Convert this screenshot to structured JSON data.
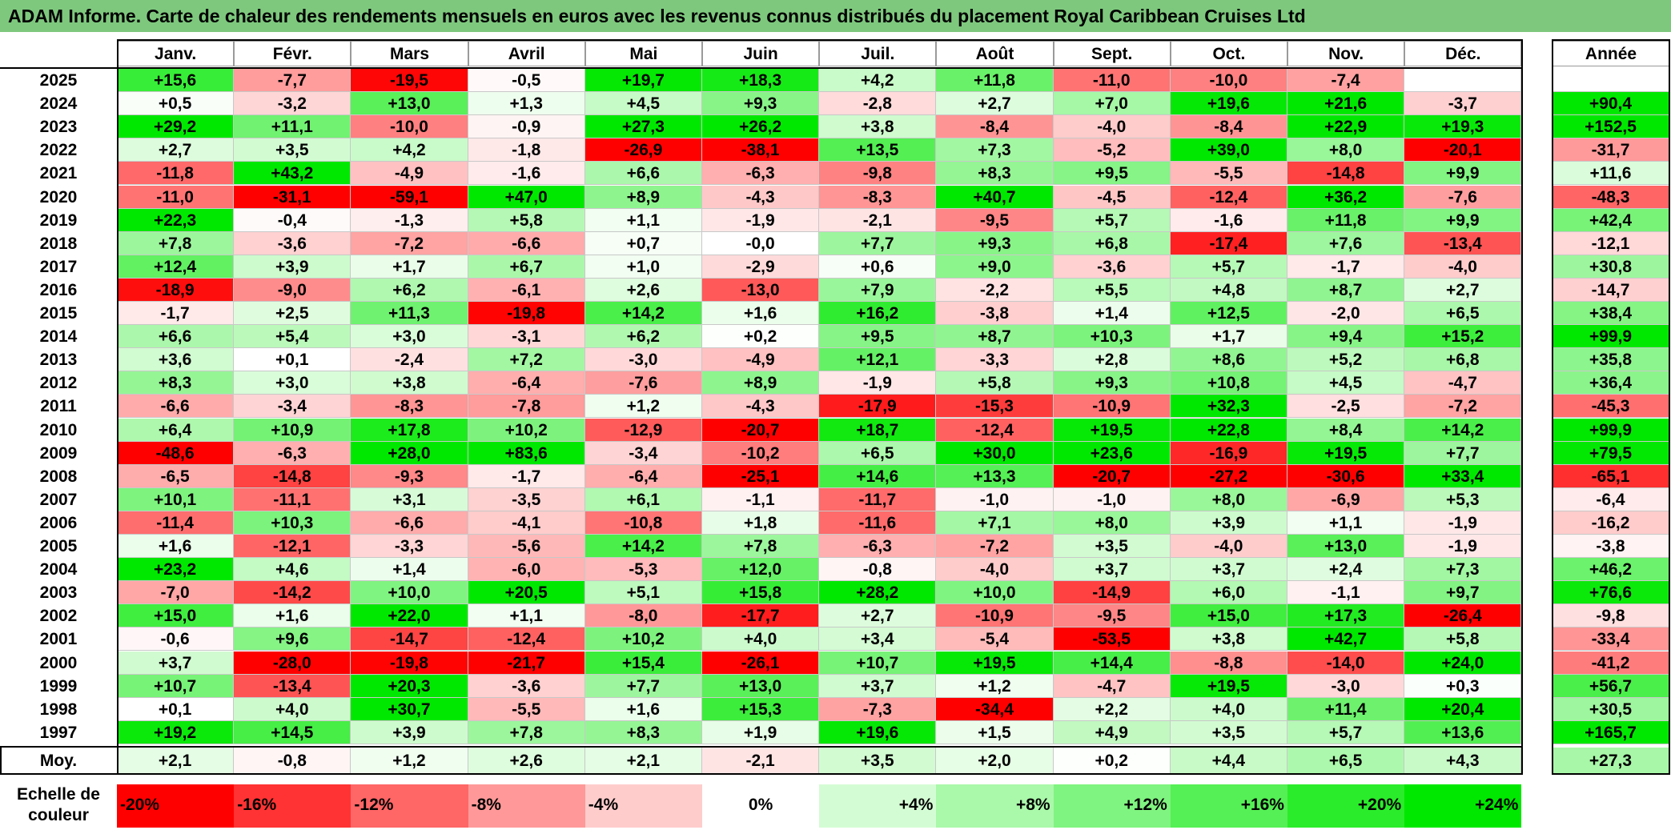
{
  "title": "ADAM Informe. Carte de chaleur des rendements mensuels en euros avec les revenus connus distribués du placement Royal Caribbean Cruises Ltd",
  "chart_data": {
    "type": "heatmap",
    "columns": [
      "Janv.",
      "Févr.",
      "Mars",
      "Avril",
      "Mai",
      "Juin",
      "Juil.",
      "Août",
      "Sept.",
      "Oct.",
      "Nov.",
      "Déc."
    ],
    "annual_header": "Année",
    "rows": [
      {
        "year": "2025",
        "months": [
          "+15,6",
          "-7,7",
          "-19,5",
          "-0,5",
          "+19,7",
          "+18,3",
          "+4,2",
          "+11,8",
          "-11,0",
          "-10,0",
          "-7,4",
          ""
        ],
        "annual": ""
      },
      {
        "year": "2024",
        "months": [
          "+0,5",
          "-3,2",
          "+13,0",
          "+1,3",
          "+4,5",
          "+9,3",
          "-2,8",
          "+2,7",
          "+7,0",
          "+19,6",
          "+21,6",
          "-3,7"
        ],
        "annual": "+90,4"
      },
      {
        "year": "2023",
        "months": [
          "+29,2",
          "+11,1",
          "-10,0",
          "-0,9",
          "+27,3",
          "+26,2",
          "+3,8",
          "-8,4",
          "-4,0",
          "-8,4",
          "+22,9",
          "+19,3"
        ],
        "annual": "+152,5"
      },
      {
        "year": "2022",
        "months": [
          "+2,7",
          "+3,5",
          "+4,2",
          "-1,8",
          "-26,9",
          "-38,1",
          "+13,5",
          "+7,3",
          "-5,2",
          "+39,0",
          "+8,0",
          "-20,1"
        ],
        "annual": "-31,7"
      },
      {
        "year": "2021",
        "months": [
          "-11,8",
          "+43,2",
          "-4,9",
          "-1,6",
          "+6,6",
          "-6,3",
          "-9,8",
          "+8,3",
          "+9,5",
          "-5,5",
          "-14,8",
          "+9,9"
        ],
        "annual": "+11,6"
      },
      {
        "year": "2020",
        "months": [
          "-11,0",
          "-31,1",
          "-59,1",
          "+47,0",
          "+8,9",
          "-4,3",
          "-8,3",
          "+40,7",
          "-4,5",
          "-12,4",
          "+36,2",
          "-7,6"
        ],
        "annual": "-48,3"
      },
      {
        "year": "2019",
        "months": [
          "+22,3",
          "-0,4",
          "-1,3",
          "+5,8",
          "+1,1",
          "-1,9",
          "-2,1",
          "-9,5",
          "+5,7",
          "-1,6",
          "+11,8",
          "+9,9"
        ],
        "annual": "+42,4"
      },
      {
        "year": "2018",
        "months": [
          "+7,8",
          "-3,6",
          "-7,2",
          "-6,6",
          "+0,7",
          "-0,0",
          "+7,7",
          "+9,3",
          "+6,8",
          "-17,4",
          "+7,6",
          "-13,4"
        ],
        "annual": "-12,1"
      },
      {
        "year": "2017",
        "months": [
          "+12,4",
          "+3,9",
          "+1,7",
          "+6,7",
          "+1,0",
          "-2,9",
          "+0,6",
          "+9,0",
          "-3,6",
          "+5,7",
          "-1,7",
          "-4,0"
        ],
        "annual": "+30,8"
      },
      {
        "year": "2016",
        "months": [
          "-18,9",
          "-9,0",
          "+6,2",
          "-6,1",
          "+2,6",
          "-13,0",
          "+7,9",
          "-2,2",
          "+5,5",
          "+4,8",
          "+8,7",
          "+2,7"
        ],
        "annual": "-14,7"
      },
      {
        "year": "2015",
        "months": [
          "-1,7",
          "+2,5",
          "+11,3",
          "-19,8",
          "+14,2",
          "+1,6",
          "+16,2",
          "-3,8",
          "+1,4",
          "+12,5",
          "-2,0",
          "+6,5"
        ],
        "annual": "+38,4"
      },
      {
        "year": "2014",
        "months": [
          "+6,6",
          "+5,4",
          "+3,0",
          "-3,1",
          "+6,2",
          "+0,2",
          "+9,5",
          "+8,7",
          "+10,3",
          "+1,7",
          "+9,4",
          "+15,2"
        ],
        "annual": "+99,9"
      },
      {
        "year": "2013",
        "months": [
          "+3,6",
          "+0,1",
          "-2,4",
          "+7,2",
          "-3,0",
          "-4,9",
          "+12,1",
          "-3,3",
          "+2,8",
          "+8,6",
          "+5,2",
          "+6,8"
        ],
        "annual": "+35,8"
      },
      {
        "year": "2012",
        "months": [
          "+8,3",
          "+3,0",
          "+3,8",
          "-6,4",
          "-7,6",
          "+8,9",
          "-1,9",
          "+5,8",
          "+9,3",
          "+10,8",
          "+4,5",
          "-4,7"
        ],
        "annual": "+36,4"
      },
      {
        "year": "2011",
        "months": [
          "-6,6",
          "-3,4",
          "-8,3",
          "-7,8",
          "+1,2",
          "-4,3",
          "-17,9",
          "-15,3",
          "-10,9",
          "+32,3",
          "-2,5",
          "-7,2"
        ],
        "annual": "-45,3"
      },
      {
        "year": "2010",
        "months": [
          "+6,4",
          "+10,9",
          "+17,8",
          "+10,2",
          "-12,9",
          "-20,7",
          "+18,7",
          "-12,4",
          "+19,5",
          "+22,8",
          "+8,4",
          "+14,2"
        ],
        "annual": "+99,9"
      },
      {
        "year": "2009",
        "months": [
          "-48,6",
          "-6,3",
          "+28,0",
          "+83,6",
          "-3,4",
          "-10,2",
          "+6,5",
          "+30,0",
          "+23,6",
          "-16,9",
          "+19,5",
          "+7,7"
        ],
        "annual": "+79,5"
      },
      {
        "year": "2008",
        "months": [
          "-6,5",
          "-14,8",
          "-9,3",
          "-1,7",
          "-6,4",
          "-25,1",
          "+14,6",
          "+13,3",
          "-20,7",
          "-27,2",
          "-30,6",
          "+33,4"
        ],
        "annual": "-65,1"
      },
      {
        "year": "2007",
        "months": [
          "+10,1",
          "-11,1",
          "+3,1",
          "-3,5",
          "+6,1",
          "-1,1",
          "-11,7",
          "-1,0",
          "-1,0",
          "+8,0",
          "-6,9",
          "+5,3"
        ],
        "annual": "-6,4"
      },
      {
        "year": "2006",
        "months": [
          "-11,4",
          "+10,3",
          "-6,6",
          "-4,1",
          "-10,8",
          "+1,8",
          "-11,6",
          "+7,1",
          "+8,0",
          "+3,9",
          "+1,1",
          "-1,9"
        ],
        "annual": "-16,2"
      },
      {
        "year": "2005",
        "months": [
          "+1,6",
          "-12,1",
          "-3,3",
          "-5,6",
          "+14,2",
          "+7,8",
          "-6,3",
          "-7,2",
          "+3,5",
          "-4,0",
          "+13,0",
          "-1,9"
        ],
        "annual": "-3,8"
      },
      {
        "year": "2004",
        "months": [
          "+23,2",
          "+4,6",
          "+1,4",
          "-6,0",
          "-5,3",
          "+12,0",
          "-0,8",
          "-4,0",
          "+3,7",
          "+3,7",
          "+2,4",
          "+7,3"
        ],
        "annual": "+46,2"
      },
      {
        "year": "2003",
        "months": [
          "-7,0",
          "-14,2",
          "+10,0",
          "+20,5",
          "+5,1",
          "+15,8",
          "+28,2",
          "+10,0",
          "-14,9",
          "+6,0",
          "-1,1",
          "+9,7"
        ],
        "annual": "+76,6"
      },
      {
        "year": "2002",
        "months": [
          "+15,0",
          "+1,6",
          "+22,0",
          "+1,1",
          "-8,0",
          "-17,7",
          "+2,7",
          "-10,9",
          "-9,5",
          "+15,0",
          "+17,3",
          "-26,4"
        ],
        "annual": "-9,8"
      },
      {
        "year": "2001",
        "months": [
          "-0,6",
          "+9,6",
          "-14,7",
          "-12,4",
          "+10,2",
          "+4,0",
          "+3,4",
          "-5,4",
          "-53,5",
          "+3,8",
          "+42,7",
          "+5,8"
        ],
        "annual": "-33,4"
      },
      {
        "year": "2000",
        "months": [
          "+3,7",
          "-28,0",
          "-19,8",
          "-21,7",
          "+15,4",
          "-26,1",
          "+10,7",
          "+19,5",
          "+14,4",
          "-8,8",
          "-14,0",
          "+24,0"
        ],
        "annual": "-41,2"
      },
      {
        "year": "1999",
        "months": [
          "+10,7",
          "-13,4",
          "+20,3",
          "-3,6",
          "+7,7",
          "+13,0",
          "+3,7",
          "+1,2",
          "-4,7",
          "+19,5",
          "-3,0",
          "+0,3"
        ],
        "annual": "+56,7"
      },
      {
        "year": "1998",
        "months": [
          "+0,1",
          "+4,0",
          "+30,7",
          "-5,5",
          "+1,6",
          "+15,3",
          "-7,3",
          "-34,4",
          "+2,2",
          "+4,0",
          "+11,4",
          "+20,4"
        ],
        "annual": "+30,5"
      },
      {
        "year": "1997",
        "months": [
          "+19,2",
          "+14,5",
          "+3,9",
          "+7,8",
          "+8,3",
          "+1,9",
          "+19,6",
          "+1,5",
          "+4,9",
          "+3,5",
          "+5,7",
          "+13,6"
        ],
        "annual": "+165,7"
      }
    ],
    "average": {
      "label": "Moy.",
      "months": [
        "+2,1",
        "-0,8",
        "+1,2",
        "+2,6",
        "+2,1",
        "-2,1",
        "+3,5",
        "+2,0",
        "+0,2",
        "+4,4",
        "+6,5",
        "+4,3"
      ],
      "annual": "+27,3"
    },
    "color_scale": {
      "label_line1": "Echelle de",
      "label_line2": "couleur",
      "steps": [
        {
          "label": "-20%",
          "value": -20,
          "color": "#ff0000"
        },
        {
          "label": "-16%",
          "value": -16,
          "color": "#ff3333"
        },
        {
          "label": "-12%",
          "value": -12,
          "color": "#ff6666"
        },
        {
          "label": "-8%",
          "value": -8,
          "color": "#ff9999"
        },
        {
          "label": "-4%",
          "value": -4,
          "color": "#ffcccc"
        },
        {
          "label": "0%",
          "value": 0,
          "color": "#ffffff"
        },
        {
          "label": "+4%",
          "value": 4,
          "color": "#d4fcd4"
        },
        {
          "label": "+8%",
          "value": 8,
          "color": "#aaf8aa"
        },
        {
          "label": "+12%",
          "value": 12,
          "color": "#80f480"
        },
        {
          "label": "+16%",
          "value": 16,
          "color": "#55f055"
        },
        {
          "label": "+20%",
          "value": 20,
          "color": "#2bec2b"
        },
        {
          "label": "+24%",
          "value": 24,
          "color": "#00e800"
        }
      ]
    },
    "colors": {
      "title_bar": "#7ec87e",
      "max_negative": "#ff0000",
      "max_positive": "#00e800",
      "neutral": "#ffffff"
    }
  }
}
